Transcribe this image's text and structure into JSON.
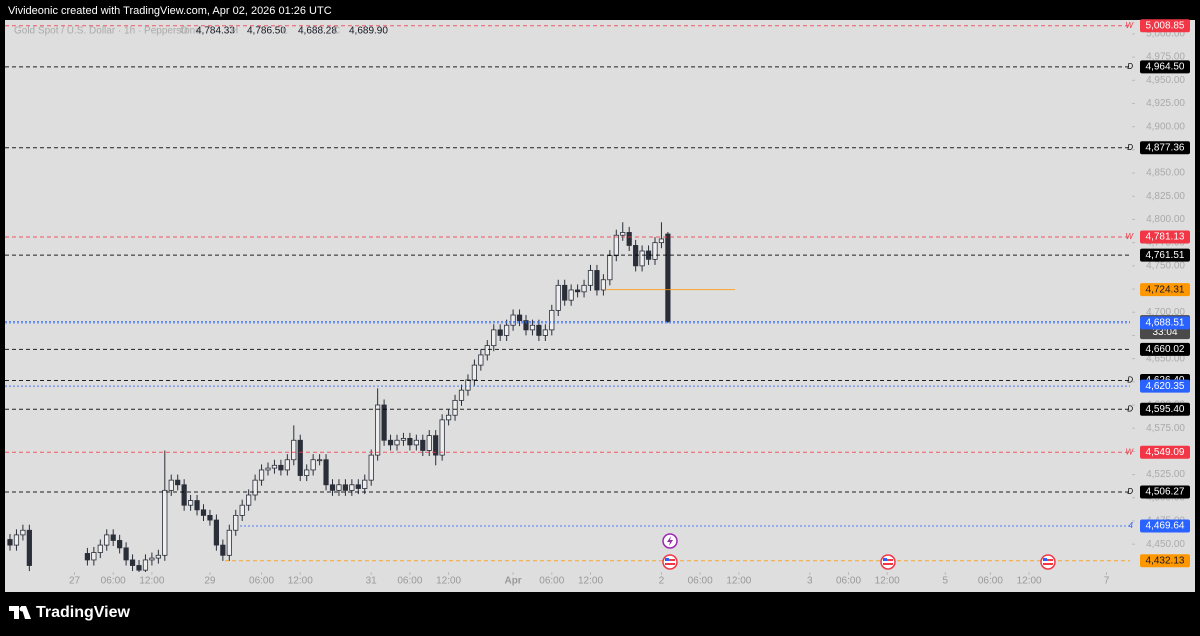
{
  "chart_data": {
    "type": "candlestick",
    "title": "Vivideonic created with TradingView.com, Apr 02, 2026 01:26 UTC",
    "symbol": "Gold Spot / U.S. Dollar · 1h · Pepperstone",
    "legend_values": [
      {
        "key": "O",
        "text": "4,784.33"
      },
      {
        "key": "H",
        "text": "4,786.50"
      },
      {
        "key": "L",
        "text": "4,688.28"
      },
      {
        "key": "C",
        "text": "4,689.90"
      }
    ],
    "brand": "TradingView",
    "up_color": "#eeeeee",
    "down_color": "#2a2e39",
    "ylim": [
      4420,
      5015
    ],
    "yticks": [
      {
        "value": 4450,
        "label": "4,450.00"
      },
      {
        "value": 4475,
        "label": "4,475.00"
      },
      {
        "value": 4500,
        "label": "4,500.00"
      },
      {
        "value": 4525,
        "label": "4,525.00"
      },
      {
        "value": 4550,
        "label": "4,550.00"
      },
      {
        "value": 4575,
        "label": "4,575.00"
      },
      {
        "value": 4600,
        "label": "4,600.00"
      },
      {
        "value": 4625,
        "label": "4,625.00"
      },
      {
        "value": 4650,
        "label": "4,650.00"
      },
      {
        "value": 4675,
        "label": "4,675.00"
      },
      {
        "value": 4700,
        "label": "4,700.00"
      },
      {
        "value": 4725,
        "label": "4,725.00"
      },
      {
        "value": 4750,
        "label": "4,750.00"
      },
      {
        "value": 4775,
        "label": "4,775.00"
      },
      {
        "value": 4800,
        "label": "4,800.00"
      },
      {
        "value": 4825,
        "label": "4,825.00"
      },
      {
        "value": 4850,
        "label": "4,850.00"
      },
      {
        "value": 4875,
        "label": "4,875.00"
      },
      {
        "value": 4900,
        "label": "4,900.00"
      },
      {
        "value": 4925,
        "label": "4,925.00"
      },
      {
        "value": 4950,
        "label": "4,950.00"
      },
      {
        "value": 4975,
        "label": "4,975.00"
      },
      {
        "value": 5000,
        "label": "5,000.00"
      }
    ],
    "xlim": [
      -0.8,
      174
    ],
    "xticks": [
      {
        "value": 10,
        "label": "27"
      },
      {
        "value": 16,
        "label": "06:00"
      },
      {
        "value": 22,
        "label": "12:00"
      },
      {
        "value": 31,
        "label": "29"
      },
      {
        "value": 39,
        "label": "06:00"
      },
      {
        "value": 45,
        "label": "12:00"
      },
      {
        "value": 56,
        "label": "31"
      },
      {
        "value": 62,
        "label": "06:00"
      },
      {
        "value": 68,
        "label": "12:00"
      },
      {
        "value": 78,
        "label": "Apr"
      },
      {
        "value": 84,
        "label": "06:00"
      },
      {
        "value": 90,
        "label": "12:00"
      },
      {
        "value": 101,
        "label": "2"
      },
      {
        "value": 107,
        "label": "06:00"
      },
      {
        "value": 113,
        "label": "12:00"
      },
      {
        "value": 124,
        "label": "3"
      },
      {
        "value": 130,
        "label": "06:00"
      },
      {
        "value": 136,
        "label": "12:00"
      },
      {
        "value": 145,
        "label": "5"
      },
      {
        "value": 152,
        "label": "06:00"
      },
      {
        "value": 158,
        "label": "12:00"
      },
      {
        "value": 170,
        "label": "7"
      }
    ],
    "open": [
      4455,
      4449,
      4460,
      4465,
      null,
      null,
      null,
      null,
      null,
      null,
      null,
      null,
      4440,
      4433,
      4441,
      4449,
      4460,
      4454,
      4446,
      4433,
      4427,
      4422,
      4433,
      4435,
      4438,
      4508,
      4519,
      4514,
      4492,
      4497,
      4487,
      4481,
      4476,
      4449,
      4438,
      4465,
      4481,
      4492,
      4503,
      4519,
      4530,
      4532,
      4535,
      4530,
      4541,
      4562,
      4524,
      4530,
      4541,
      4541,
      4514,
      4508,
      4514,
      4508,
      4514,
      4510,
      4519,
      4546,
      4600,
      4562,
      4557,
      4562,
      4564,
      4557,
      4562,
      4551,
      4567,
      4546,
      4584,
      4589,
      4605,
      4616,
      4627,
      4643,
      4654,
      4664,
      4681,
      4675,
      4686,
      4697,
      4691,
      4681,
      4686,
      4675,
      4681,
      4702,
      4729,
      4713,
      4724,
      4722,
      4729,
      4745,
      4724,
      4735,
      4761,
      4783,
      4786,
      4772,
      4750,
      4766,
      4757,
      4775,
      4784.33
    ],
    "high": [
      4461,
      4466,
      4471,
      4471,
      null,
      null,
      null,
      null,
      null,
      null,
      null,
      null,
      4446,
      4447,
      4455,
      4466,
      4466,
      4460,
      4452,
      4439,
      4433,
      4439,
      4441,
      4444,
      4551,
      4525,
      4525,
      4520,
      4503,
      4503,
      4493,
      4487,
      4482,
      4455,
      4471,
      4487,
      4498,
      4509,
      4525,
      4536,
      4538,
      4541,
      4541,
      4547,
      4578,
      4568,
      4536,
      4547,
      4547,
      4547,
      4520,
      4520,
      4520,
      4520,
      4520,
      4525,
      4552,
      4618,
      4606,
      4568,
      4568,
      4570,
      4570,
      4568,
      4568,
      4573,
      4573,
      4590,
      4595,
      4611,
      4622,
      4633,
      4649,
      4660,
      4670,
      4687,
      4687,
      4692,
      4703,
      4703,
      4697,
      4692,
      4692,
      4687,
      4708,
      4735,
      4735,
      4730,
      4730,
      4735,
      4751,
      4751,
      4741,
      4767,
      4789,
      4797,
      4792,
      4778,
      4772,
      4772,
      4781,
      4797,
      4786.5
    ],
    "low": [
      4443,
      4443,
      4454,
      4421,
      null,
      null,
      null,
      null,
      null,
      null,
      null,
      null,
      4427,
      4427,
      4435,
      4443,
      4448,
      4440,
      4427,
      4421,
      4420,
      4420,
      4427,
      4429,
      4432,
      4502,
      4508,
      4486,
      4486,
      4481,
      4475,
      4470,
      4443,
      4432,
      4432,
      4459,
      4475,
      4486,
      4497,
      4513,
      4524,
      4526,
      4524,
      4524,
      4535,
      4518,
      4518,
      4524,
      4535,
      4508,
      4502,
      4502,
      4502,
      4502,
      4504,
      4504,
      4513,
      4540,
      4556,
      4551,
      4551,
      4556,
      4551,
      4551,
      4545,
      4545,
      4535,
      4540,
      4578,
      4583,
      4599,
      4610,
      4621,
      4637,
      4648,
      4658,
      4669,
      4669,
      4680,
      4685,
      4675,
      4675,
      4669,
      4669,
      4675,
      4696,
      4707,
      4707,
      4716,
      4716,
      4723,
      4718,
      4718,
      4729,
      4755,
      4777,
      4766,
      4744,
      4744,
      4751,
      4751,
      4769,
      4688.28
    ],
    "close": [
      4449,
      4460,
      4465,
      4427,
      null,
      null,
      null,
      null,
      null,
      null,
      null,
      null,
      4433,
      4441,
      4449,
      4460,
      4454,
      4446,
      4433,
      4427,
      4422,
      4433,
      4435,
      4438,
      4508,
      4519,
      4514,
      4492,
      4497,
      4487,
      4481,
      4476,
      4449,
      4438,
      4465,
      4481,
      4492,
      4503,
      4519,
      4530,
      4532,
      4535,
      4530,
      4541,
      4562,
      4524,
      4530,
      4541,
      4541,
      4514,
      4508,
      4514,
      4508,
      4514,
      4510,
      4519,
      4546,
      4600,
      4562,
      4557,
      4562,
      4564,
      4557,
      4562,
      4551,
      4567,
      4546,
      4584,
      4589,
      4605,
      4616,
      4627,
      4643,
      4654,
      4664,
      4681,
      4675,
      4686,
      4697,
      4691,
      4681,
      4686,
      4675,
      4681,
      4702,
      4729,
      4713,
      4724,
      4722,
      4729,
      4745,
      4724,
      4735,
      4761,
      4783,
      4786,
      4772,
      4750,
      4766,
      4757,
      4775,
      4779,
      4689.9
    ],
    "levels": [
      {
        "price": 5008.85,
        "label": "5,008.85",
        "tag": "W",
        "color": "#f23645"
      },
      {
        "price": 4964.5,
        "label": "4,964.50",
        "tag": "D",
        "color": "#000000"
      },
      {
        "price": 4877.36,
        "label": "4,877.36",
        "tag": "D",
        "color": "#000000"
      },
      {
        "price": 4781.13,
        "label": "4,781.13",
        "tag": "W",
        "color": "#f23645"
      },
      {
        "price": 4761.51,
        "label": "4,761.51",
        "color": "#000000"
      },
      {
        "price": 4724.31,
        "label": "4,724.31",
        "color": "#ff9800"
      },
      {
        "price": 4689.9,
        "label": "4,689.90",
        "countdown": "33:04",
        "color": "#4a4a4a"
      },
      {
        "price": 4688.51,
        "label": "4,688.51",
        "color": "#2962ff"
      },
      {
        "price": 4660.02,
        "label": "4,660.02",
        "color": "#000000"
      },
      {
        "price": 4626.4,
        "label": "4,626.40",
        "tag": "D",
        "color": "#000000"
      },
      {
        "price": 4620.35,
        "label": "4,620.35",
        "color": "#2962ff"
      },
      {
        "price": 4595.4,
        "label": "4,595.40",
        "tag": "D",
        "color": "#000000"
      },
      {
        "price": 4549.09,
        "label": "4,549.09",
        "tag": "W",
        "color": "#f23645"
      },
      {
        "price": 4506.27,
        "label": "4,506.27",
        "tag": "D",
        "color": "#000000"
      },
      {
        "price": 4469.64,
        "label": "4,469.64",
        "tag": "4",
        "color": "#2962ff"
      },
      {
        "price": 4432.13,
        "label": "4,432.13",
        "color": "#ff9800"
      }
    ]
  }
}
